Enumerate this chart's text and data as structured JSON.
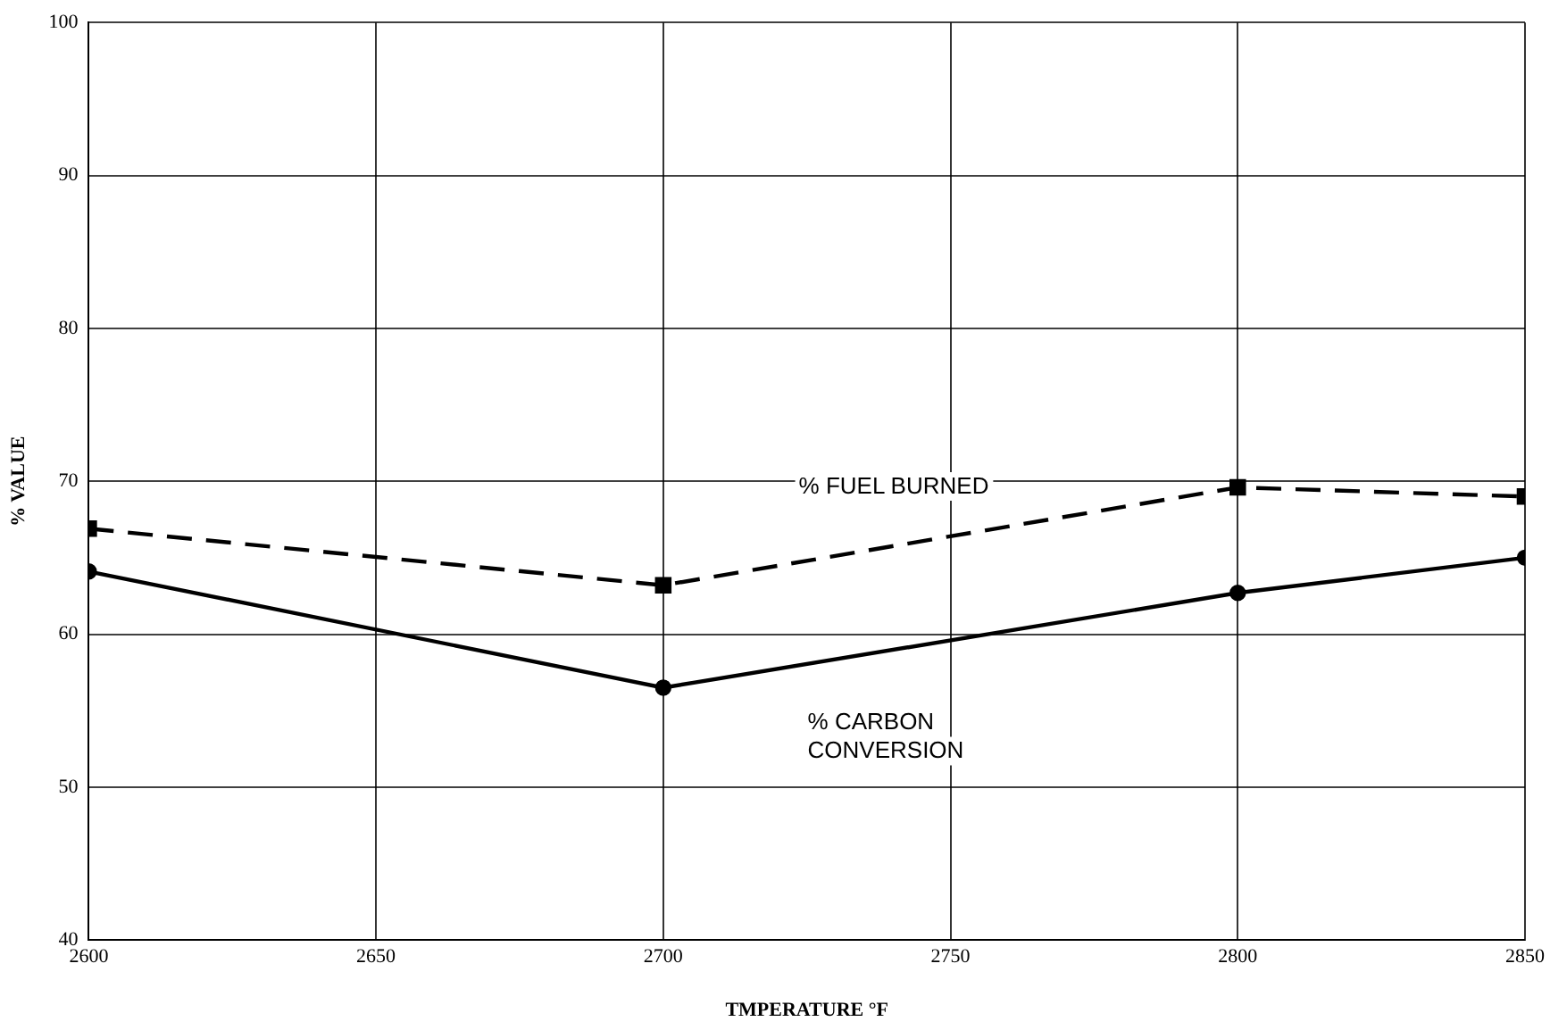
{
  "chart_data": {
    "type": "line",
    "xlabel": "TMPERATURE °F",
    "ylabel": "% VALUE",
    "x": [
      2600,
      2700,
      2800,
      2850
    ],
    "series": [
      {
        "name": "% FUEL BURNED",
        "color": "#000000",
        "values": [
          66.9,
          63.2,
          69.6,
          69.0
        ],
        "marker": "square",
        "line_style": "dashed"
      },
      {
        "name": "% CARBON CONVERSION",
        "color": "#000000",
        "values": [
          64.1,
          56.5,
          62.7,
          65.0
        ],
        "marker": "circle",
        "line_style": "solid"
      }
    ],
    "xlim": [
      2600,
      2850
    ],
    "xticks": [
      2600,
      2650,
      2700,
      2750,
      2800,
      2850
    ],
    "ylim": [
      40,
      100
    ],
    "yticks": [
      40,
      50,
      60,
      70,
      80,
      90,
      100
    ],
    "grid": true,
    "legend": false
  }
}
